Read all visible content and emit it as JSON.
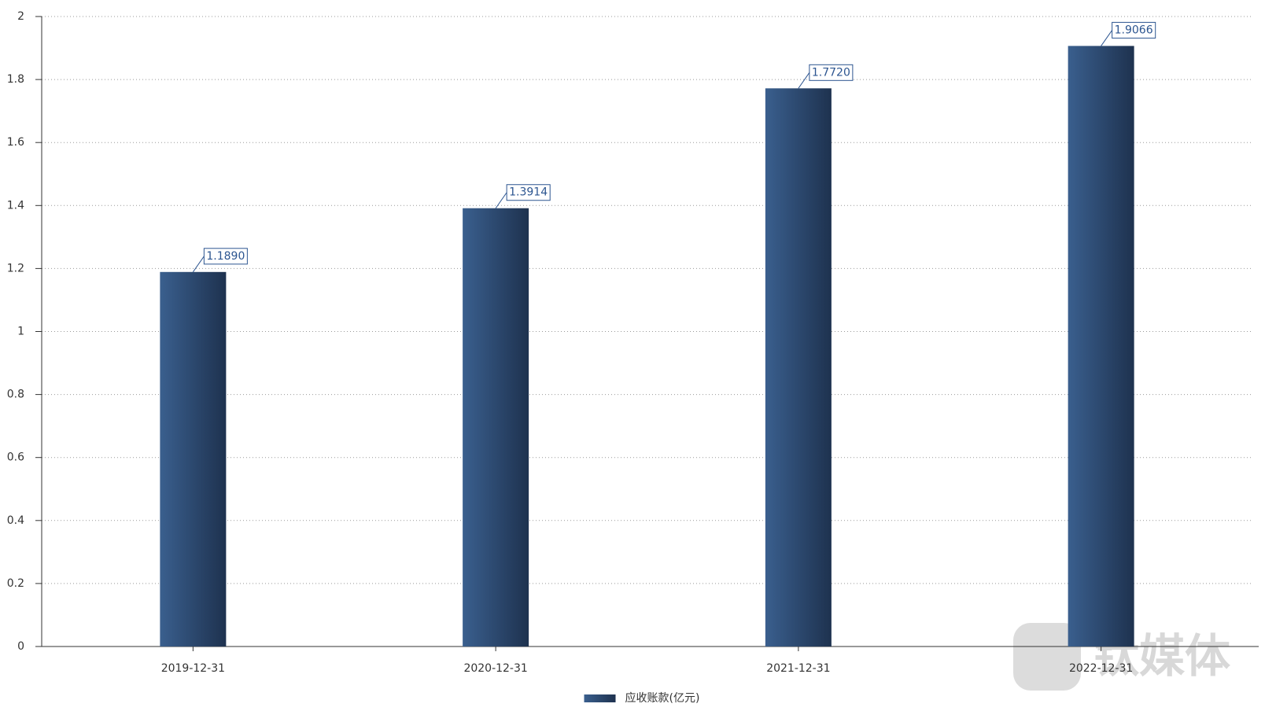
{
  "chart_data": {
    "type": "bar",
    "categories": [
      "2019-12-31",
      "2020-12-31",
      "2021-12-31",
      "2022-12-31"
    ],
    "series": [
      {
        "name": "应收账款(亿元)",
        "color": "#2c4a70",
        "values": [
          1.189,
          1.3914,
          1.772,
          1.9066
        ],
        "value_labels": [
          "1.1890",
          "1.3914",
          "1.7720",
          "1.9066"
        ]
      }
    ],
    "ylim": [
      0,
      2
    ],
    "yticks": [
      0,
      0.2,
      0.4,
      0.6,
      0.8,
      1,
      1.2,
      1.4,
      1.6,
      1.8,
      2
    ],
    "grid": true,
    "legend": "bottom",
    "watermark": "钛媒体"
  }
}
